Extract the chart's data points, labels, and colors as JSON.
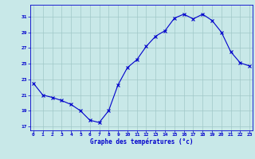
{
  "hours": [
    0,
    1,
    2,
    3,
    4,
    5,
    6,
    7,
    8,
    9,
    10,
    11,
    12,
    13,
    14,
    15,
    16,
    17,
    18,
    19,
    20,
    21,
    22,
    23
  ],
  "temperatures": [
    22.5,
    21.0,
    20.7,
    20.3,
    19.8,
    19.0,
    17.8,
    17.5,
    19.0,
    22.3,
    24.5,
    25.5,
    27.2,
    28.5,
    29.2,
    30.8,
    31.3,
    30.7,
    31.3,
    30.5,
    29.0,
    26.5,
    25.1,
    24.7
  ],
  "line_color": "#0000cc",
  "marker": "x",
  "bg_color": "#c8e8e8",
  "grid_color": "#a0c8c8",
  "axis_color": "#0000cc",
  "xlabel": "Graphe des températures (°c)",
  "ylim": [
    16.5,
    32.5
  ],
  "yticks": [
    17,
    19,
    21,
    23,
    25,
    27,
    29,
    31
  ],
  "xticks": [
    0,
    1,
    2,
    3,
    4,
    5,
    6,
    7,
    8,
    9,
    10,
    11,
    12,
    13,
    14,
    15,
    16,
    17,
    18,
    19,
    20,
    21,
    22,
    23
  ],
  "figsize": [
    3.2,
    2.0
  ],
  "dpi": 100
}
